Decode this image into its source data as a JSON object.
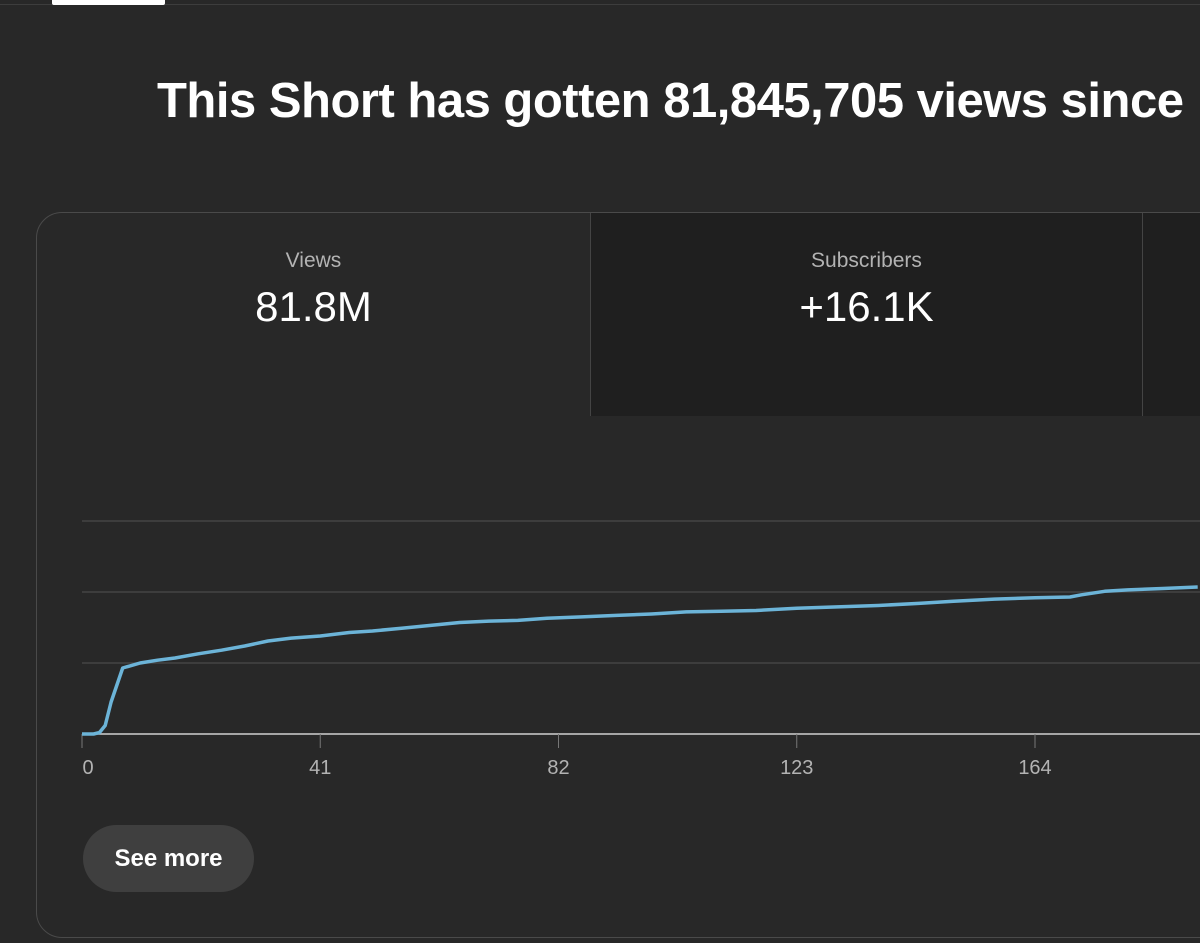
{
  "headline": "This Short has gotten 81,845,705 views since",
  "metrics": {
    "views": {
      "label": "Views",
      "value": "81.8M"
    },
    "subscribers": {
      "label": "Subscribers",
      "value": "+16.1K"
    }
  },
  "see_more_label": "See more",
  "colors": {
    "background": "#282828",
    "line": "#6cb4d8",
    "grid": "#444444"
  },
  "chart_data": {
    "type": "line",
    "title": "",
    "xlabel": "",
    "ylabel": "",
    "x_ticks": [
      "0",
      "41",
      "82",
      "123",
      "164"
    ],
    "x_range": [
      0,
      192
    ],
    "y_range": [
      0,
      3
    ],
    "grid": true,
    "series": [
      {
        "points": [
          [
            0,
            0.0
          ],
          [
            2,
            0.0
          ],
          [
            3,
            0.02
          ],
          [
            4,
            0.12
          ],
          [
            5,
            0.45
          ],
          [
            7,
            0.93
          ],
          [
            10,
            1.0
          ],
          [
            13,
            1.04
          ],
          [
            16,
            1.07
          ],
          [
            20,
            1.13
          ],
          [
            24,
            1.18
          ],
          [
            28,
            1.24
          ],
          [
            32,
            1.31
          ],
          [
            36,
            1.35
          ],
          [
            41,
            1.38
          ],
          [
            46,
            1.43
          ],
          [
            50,
            1.45
          ],
          [
            55,
            1.49
          ],
          [
            60,
            1.53
          ],
          [
            65,
            1.57
          ],
          [
            70,
            1.59
          ],
          [
            75,
            1.6
          ],
          [
            80,
            1.63
          ],
          [
            86,
            1.65
          ],
          [
            92,
            1.67
          ],
          [
            98,
            1.69
          ],
          [
            104,
            1.72
          ],
          [
            110,
            1.73
          ],
          [
            116,
            1.74
          ],
          [
            123,
            1.77
          ],
          [
            130,
            1.79
          ],
          [
            137,
            1.81
          ],
          [
            144,
            1.84
          ],
          [
            150,
            1.87
          ],
          [
            157,
            1.9
          ],
          [
            164,
            1.92
          ],
          [
            170,
            1.93
          ],
          [
            172,
            1.96
          ],
          [
            176,
            2.01
          ],
          [
            180,
            2.03
          ],
          [
            186,
            2.05
          ],
          [
            192,
            2.07
          ]
        ]
      }
    ]
  }
}
